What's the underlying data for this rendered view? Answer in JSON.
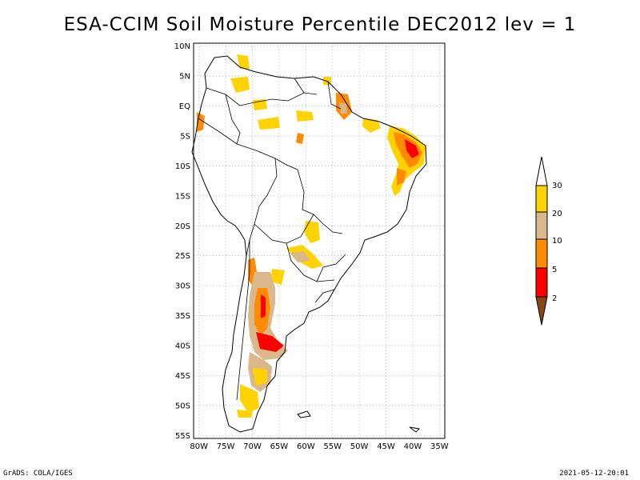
{
  "title": "ESA-CCIM Soil Moisture Percentile DEC2012 lev = 1",
  "map": {
    "lat_labels": [
      "10N",
      "5N",
      "EQ",
      "5S",
      "10S",
      "15S",
      "20S",
      "25S",
      "30S",
      "35S",
      "40S",
      "45S",
      "50S",
      "55S"
    ],
    "lon_labels": [
      "80W",
      "75W",
      "70W",
      "65W",
      "60W",
      "55W",
      "50W",
      "45W",
      "40W",
      "35W"
    ],
    "lat_range": [
      10.5,
      -55.5
    ],
    "lon_range": [
      -81,
      -34
    ],
    "grid": true
  },
  "colorbar": {
    "labels": [
      "30",
      "20",
      "10",
      "5",
      "2"
    ],
    "colors": {
      "above_30": "#ffffff",
      "20_30": "#ffd300",
      "10_20": "#d9b88c",
      "5_10": "#ff8c00",
      "2_5": "#ff0000",
      "below_2": "#8b4513"
    }
  },
  "footer": {
    "left": "GrADS: COLA/IGES",
    "right": "2021-05-12-20:01"
  }
}
